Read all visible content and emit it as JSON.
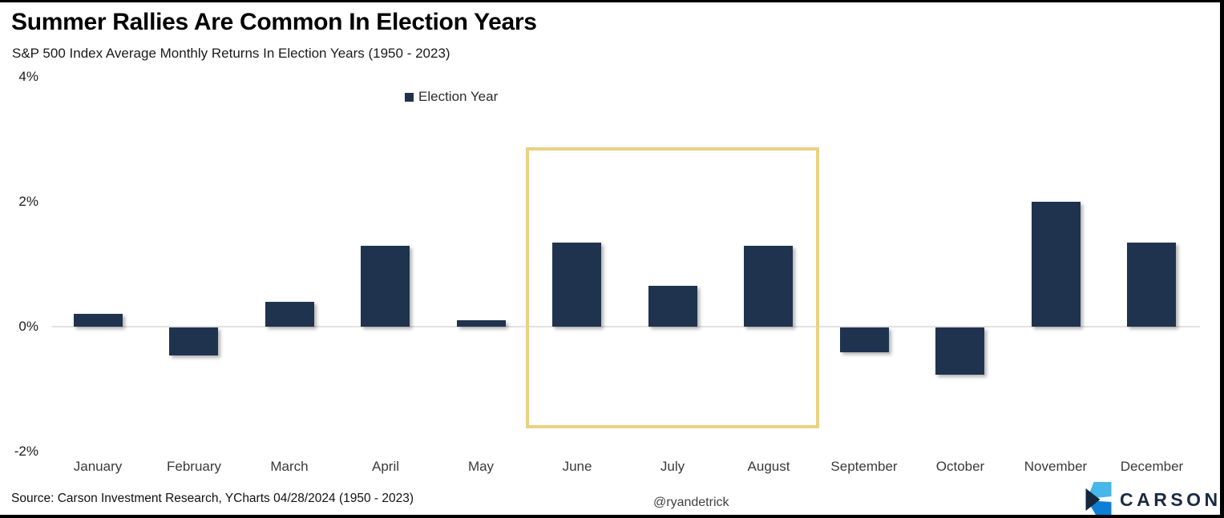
{
  "title": "Summer Rallies Are Common In Election Years",
  "subtitle": "S&P 500 Index Average Monthly Returns In Election Years (1950 - 2023)",
  "legend": {
    "label": "Election Year"
  },
  "footer": {
    "source": "Source: Carson Investment Research, YCharts 04/28/2024 (1950 - 2023)",
    "handle": "@ryandetrick",
    "logo_text": "CARSON"
  },
  "colors": {
    "bar": "#1f334f",
    "highlight_border": "#e9d185",
    "zero_line": "#e2e2e2",
    "logo_light_blue": "#47b6e9",
    "logo_blue": "#0e7fd6",
    "logo_navy": "#15273b"
  },
  "chart_data": {
    "type": "bar",
    "title": "Summer Rallies Are Common In Election Years",
    "subtitle": "S&P 500 Index Average Monthly Returns In Election Years (1950 - 2023)",
    "series_name": "Election Year",
    "categories": [
      "January",
      "February",
      "March",
      "April",
      "May",
      "June",
      "July",
      "August",
      "September",
      "October",
      "November",
      "December"
    ],
    "values": [
      0.2,
      -0.45,
      0.4,
      1.3,
      0.1,
      1.35,
      0.65,
      1.3,
      -0.4,
      -0.75,
      2.0,
      1.35
    ],
    "unit": "%",
    "ylim": [
      -2,
      4
    ],
    "ytick_values": [
      4,
      2,
      0,
      -2
    ],
    "ytick_labels": [
      "4%",
      "2%",
      "0%",
      "-2%"
    ],
    "grid": false,
    "legend_position": "top-center",
    "highlighted_categories": [
      "June",
      "July",
      "August"
    ],
    "xlabel": "",
    "ylabel": ""
  }
}
